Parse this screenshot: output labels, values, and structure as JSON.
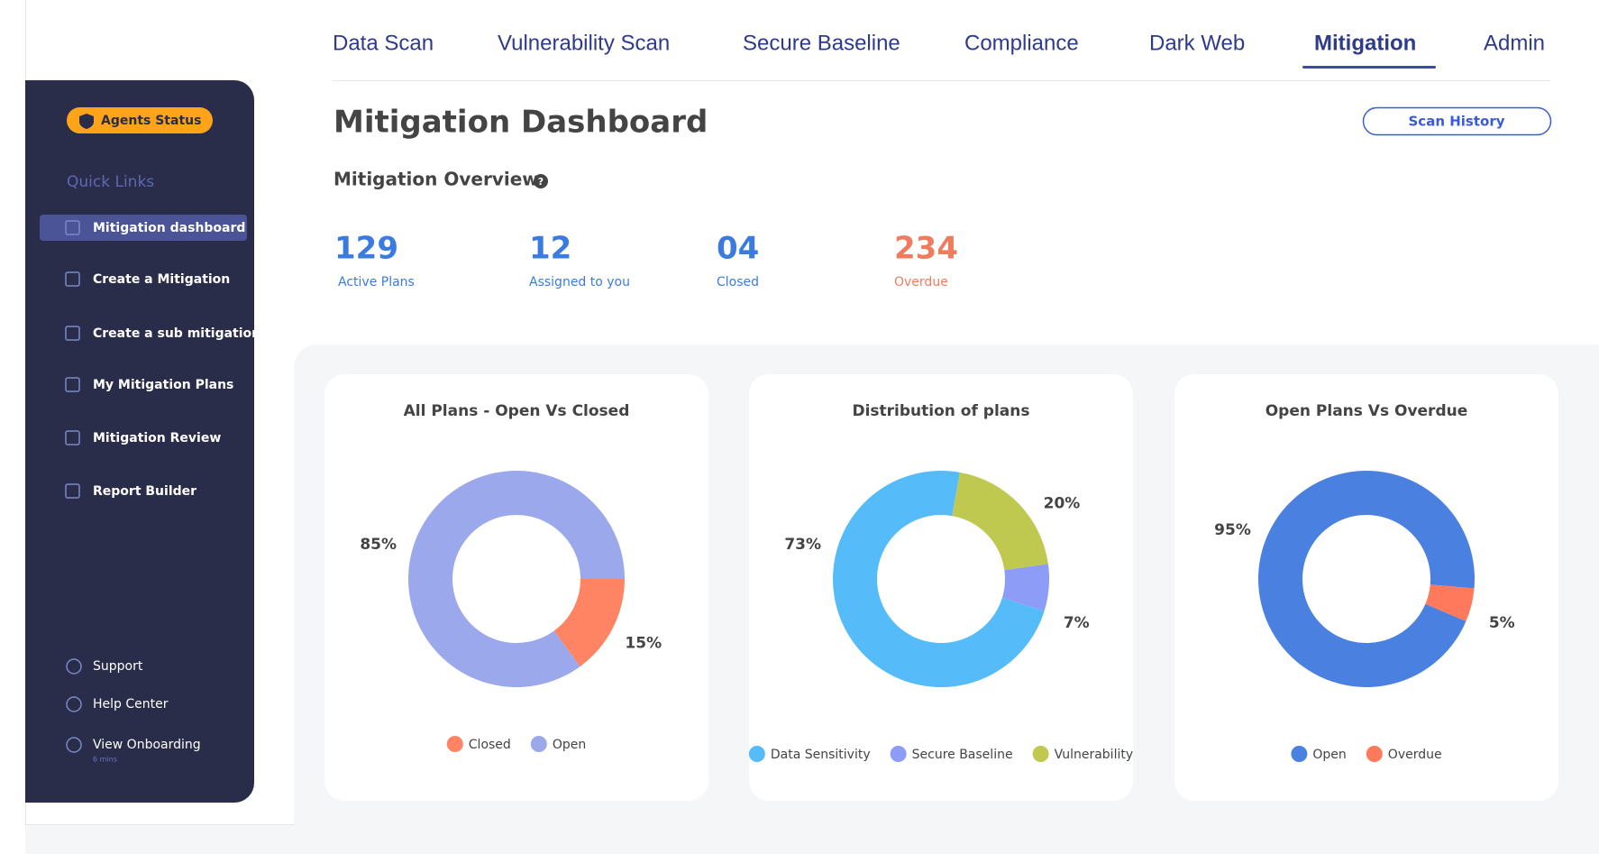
{
  "nav": {
    "tabs": [
      "Data Scan",
      "Vulnerability Scan",
      "Secure Baseline",
      "Compliance",
      "Dark Web",
      "Mitigation",
      "Admin"
    ]
  },
  "sidebar": {
    "agents_status": "Agents Status",
    "quick_links_title": "Quick Links",
    "links": [
      "Mitigation dashboard",
      "Create a Mitigation",
      "Create a sub mitigation",
      "My Mitigation Plans",
      "Mitigation Review",
      "Report Builder"
    ],
    "footer_links": [
      "Support",
      "Help Center",
      "View Onboarding"
    ],
    "onboarding_duration": "6 mins"
  },
  "header": {
    "title": "Mitigation Dashboard",
    "button": "Scan History"
  },
  "overview": {
    "title": "Mitigation Overview",
    "stats": [
      {
        "value": "129",
        "label": "Active Plans"
      },
      {
        "value": "12",
        "label": "Assigned to you"
      },
      {
        "value": "04",
        "label": "Closed"
      },
      {
        "value": "234",
        "label": "Overdue"
      }
    ]
  },
  "charts": [
    {
      "type": "pie",
      "title": "All Plans - Open Vs Closed",
      "categories": [
        "Closed",
        "Open"
      ],
      "values": [
        15,
        85
      ],
      "value_labels": [
        "15%",
        "85%"
      ],
      "colors": [
        "#ff8463",
        "#9ba8ec"
      ]
    },
    {
      "type": "pie",
      "title": "Distribution of plans",
      "categories": [
        "Data Sensitivity",
        "Secure Baseline",
        "Vulnerability"
      ],
      "values": [
        73,
        7,
        20
      ],
      "value_labels": [
        "73%",
        "7%",
        "20%"
      ],
      "colors": [
        "#55bcf9",
        "#8d9df7",
        "#bfc84f"
      ]
    },
    {
      "type": "pie",
      "title": "Open Plans Vs Overdue",
      "categories": [
        "Open",
        "Overdue"
      ],
      "values": [
        95,
        5
      ],
      "value_labels": [
        "95%",
        "5%"
      ],
      "colors": [
        "#4a80e0",
        "#ff7a5c"
      ]
    }
  ]
}
